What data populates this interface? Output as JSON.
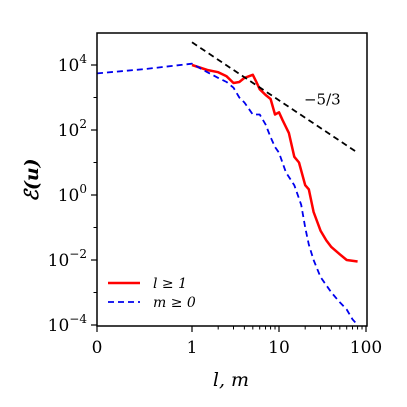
{
  "chart_data": {
    "type": "line",
    "title": "",
    "xlabel": "l, m",
    "ylabel": "ℰ(u)",
    "xscale": "symlog (linear 0–1, log above 1)",
    "yscale": "log",
    "xlim": [
      0,
      100
    ],
    "ylim": [
      0.0001,
      100000
    ],
    "x_ticks": [
      {
        "value": 0,
        "label": "0"
      },
      {
        "value": 1,
        "label": "1"
      },
      {
        "value": 10,
        "label": "10"
      },
      {
        "value": 100,
        "label": "100"
      }
    ],
    "y_ticks": [
      {
        "value": 0.0001,
        "base": "10",
        "exp": "−4"
      },
      {
        "value": 0.01,
        "base": "10",
        "exp": "−2"
      },
      {
        "value": 1,
        "base": "10",
        "exp": "0"
      },
      {
        "value": 100,
        "base": "10",
        "exp": "2"
      },
      {
        "value": 10000,
        "base": "10",
        "exp": "4"
      }
    ],
    "grid": false,
    "legend_position": "lower-left",
    "series": [
      {
        "name": "l ≥ 1",
        "color": "#ff0000",
        "style": "solid",
        "x": [
          1,
          1.5,
          2,
          2.5,
          3,
          3.5,
          4,
          5,
          5.5,
          6,
          7,
          8,
          9,
          10,
          11,
          13,
          15,
          17,
          20,
          22,
          25,
          30,
          35,
          40,
          50,
          60,
          80
        ],
        "y": [
          10000,
          7000,
          6000,
          4500,
          2800,
          3000,
          4000,
          5000,
          3000,
          1800,
          1200,
          900,
          300,
          350,
          200,
          80,
          15,
          10,
          2,
          1.5,
          0.3,
          0.08,
          0.04,
          0.025,
          0.015,
          0.01,
          0.009
        ]
      },
      {
        "name": "m ≥ 0",
        "color": "#0000ee",
        "style": "dashed",
        "x": [
          0,
          0.5,
          1,
          1.5,
          2,
          2.5,
          3,
          3.5,
          4,
          5,
          6,
          7,
          8,
          9,
          10,
          12,
          15,
          18,
          20,
          22,
          25,
          30,
          40,
          50,
          60,
          70,
          80
        ],
        "y": [
          5500,
          7500,
          11000,
          6000,
          4000,
          3000,
          2000,
          1000,
          700,
          300,
          300,
          150,
          60,
          30,
          20,
          5,
          2,
          0.5,
          0.1,
          0.03,
          0.01,
          0.003,
          0.001,
          0.0005,
          0.0003,
          0.00015,
          0.0001
        ]
      },
      {
        "name": "",
        "color": "#000000",
        "style": "dashed",
        "x": [
          1,
          80
        ],
        "y": [
          50000,
          20
        ]
      }
    ],
    "annotations": [
      {
        "text": "−5/3",
        "x": 35,
        "y": 600
      }
    ]
  }
}
